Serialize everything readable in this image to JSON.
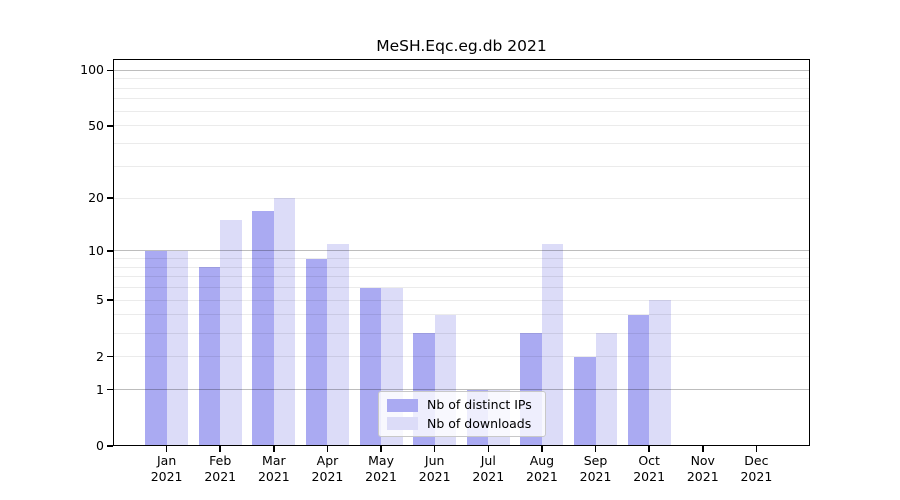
{
  "title": "MeSH.Eqc.eg.db 2021",
  "colors": {
    "ips_bar": "#aaaaf2",
    "downloads_bar": "#dcdcf8",
    "grid_major": "rgba(0,0,0,0.26)",
    "grid_minor": "rgba(0,0,0,0.08)",
    "axis_line": "#000000",
    "text": "#000000",
    "legend_border": "#c8c8c8",
    "legend_background": "rgba(255,255,255,0.8)"
  },
  "chart_data": {
    "type": "bar",
    "title": "MeSH.Eqc.eg.db 2021",
    "categories": [
      "Jan 2021",
      "Feb 2021",
      "Mar 2021",
      "Apr 2021",
      "May 2021",
      "Jun 2021",
      "Jul 2021",
      "Aug 2021",
      "Sep 2021",
      "Oct 2021",
      "Nov 2021",
      "Dec 2021"
    ],
    "series": [
      {
        "name": "Nb of distinct IPs",
        "key": "ips",
        "values": [
          10,
          8,
          17,
          9,
          6,
          3,
          1,
          3,
          2,
          4,
          0,
          0
        ]
      },
      {
        "name": "Nb of downloads",
        "key": "downloads",
        "values": [
          10,
          15,
          20,
          11,
          6,
          4,
          1,
          11,
          3,
          5,
          0,
          0
        ]
      }
    ],
    "xlabel": "",
    "ylabel": "",
    "yscale": "log1p",
    "ylim": [
      0,
      115
    ],
    "yticks": [
      0,
      1,
      2,
      5,
      10,
      20,
      50,
      100
    ],
    "y_major_gridlines": [
      1,
      10,
      100
    ],
    "y_minor_gridlines": [
      2,
      3,
      4,
      5,
      6,
      7,
      8,
      9,
      20,
      30,
      40,
      50,
      60,
      70,
      80,
      90
    ],
    "grid": "both",
    "legend_position": "lower center inside"
  }
}
